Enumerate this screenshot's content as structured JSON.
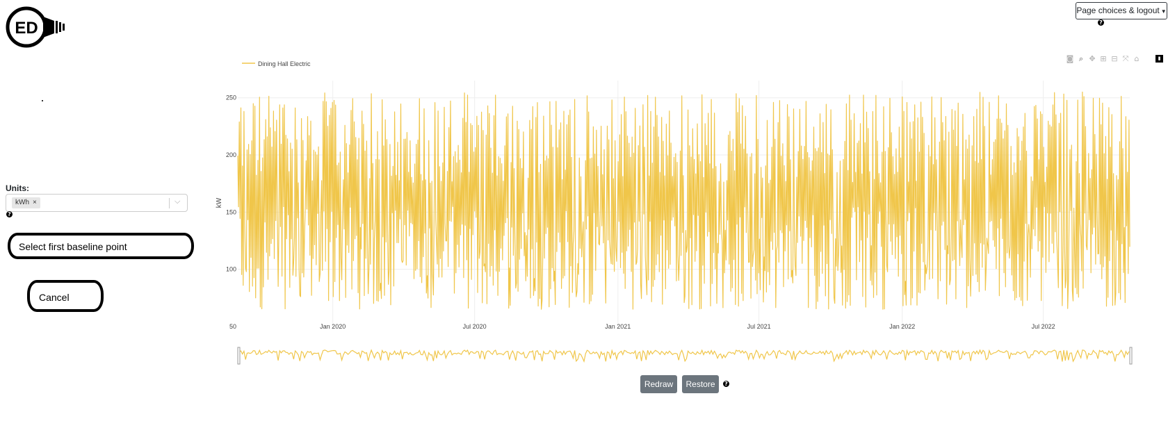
{
  "logo": {
    "text": "ED"
  },
  "header": {
    "page_choices_label": "Page choices & logout"
  },
  "sidebar": {
    "units_label": "Units:",
    "units_selected": "kWh",
    "units_remove": "×",
    "baseline_label": "Select first baseline point",
    "cancel_label": "Cancel"
  },
  "modebar": {
    "icons": [
      "camera-icon",
      "zoom-icon",
      "pan-icon",
      "zoom-in-icon",
      "zoom-out-icon",
      "autoscale-icon",
      "reset-axes-icon",
      "plotly-logo-icon"
    ]
  },
  "controls": {
    "redraw_label": "Redraw",
    "restore_label": "Restore"
  },
  "colors": {
    "series": "#f0c64a",
    "button": "#6c757d"
  },
  "chart_data": {
    "type": "line",
    "ylabel": "kW",
    "ylim": [
      50,
      265
    ],
    "yticks": [
      50,
      100,
      150,
      200,
      250
    ],
    "xticks": [
      "Jan 2020",
      "Jul 2020",
      "Jan 2021",
      "Jul 2021",
      "Jan 2022",
      "Jul 2022"
    ],
    "xrange": [
      "2019-09-01",
      "2022-10-20"
    ],
    "grid": true,
    "legend_position": "top-left",
    "series": [
      {
        "name": "Dining Hall Electric",
        "pattern": "daily values oscillating between ~65 and ~255 kW",
        "min": 63,
        "max": 261
      }
    ],
    "range_slider": true
  }
}
